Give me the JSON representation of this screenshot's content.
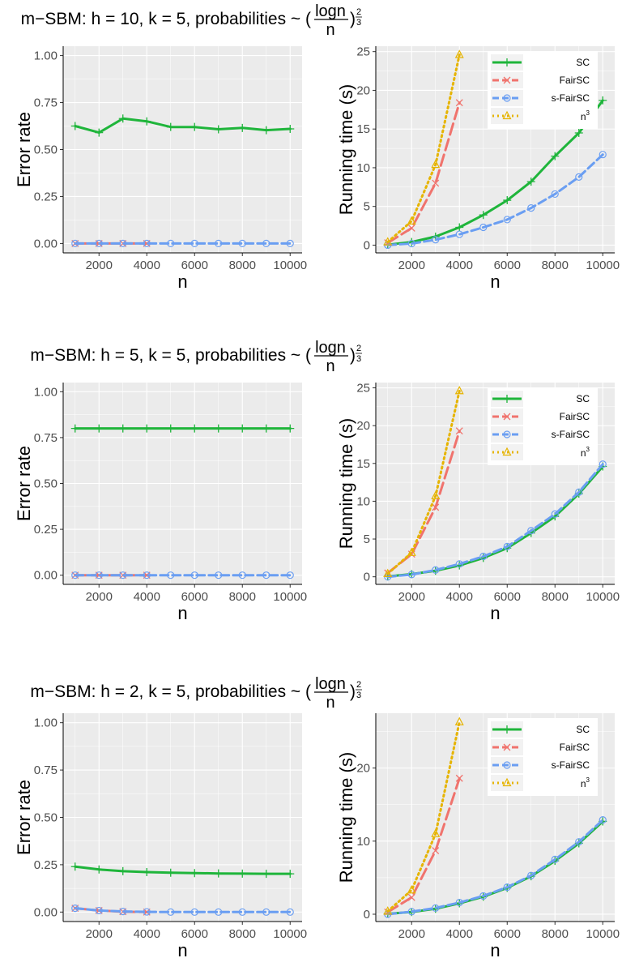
{
  "colors": {
    "SC": "#1fb53b",
    "FairSC": "#f0736d",
    "s-FairSC": "#6a9ef2",
    "n3": "#e6b400",
    "panel_bg": "#ebebeb",
    "grid": "#ffffff"
  },
  "legend": {
    "labels": [
      "SC",
      "FairSC",
      "s-FairSC"
    ],
    "cubic_base": "n",
    "cubic_exp": "3"
  },
  "chart_data": [
    {
      "title": {
        "prefix": "m−SBM: h = 10, k = 5, probabilities ~ (",
        "num": "logn",
        "den": "n",
        "suffix": ")",
        "exp_num": "2",
        "exp_den": "3"
      },
      "panels": [
        {
          "type": "line",
          "xlabel": "n",
          "ylabel": "Error rate",
          "xlim": [
            500,
            10500
          ],
          "ylim": [
            -0.05,
            1.05
          ],
          "x_ticks": [
            2000,
            4000,
            6000,
            8000,
            10000
          ],
          "y_ticks": [
            0,
            0.25,
            0.5,
            0.75,
            1.0
          ],
          "y_tick_labels": [
            "0.00",
            "0.25",
            "0.50",
            "0.75",
            "1.00"
          ],
          "series": [
            {
              "name": "SC",
              "x": [
                1000,
                2000,
                3000,
                4000,
                5000,
                6000,
                7000,
                8000,
                9000,
                10000
              ],
              "y": [
                0.625,
                0.59,
                0.665,
                0.65,
                0.62,
                0.62,
                0.608,
                0.615,
                0.603,
                0.61
              ]
            },
            {
              "name": "FairSC",
              "x": [
                1000,
                2000,
                3000,
                4000
              ],
              "y": [
                0,
                0,
                0,
                0
              ]
            },
            {
              "name": "s-FairSC",
              "x": [
                1000,
                2000,
                3000,
                4000,
                5000,
                6000,
                7000,
                8000,
                9000,
                10000
              ],
              "y": [
                0,
                0,
                0,
                0,
                0,
                0,
                0,
                0,
                0,
                0
              ]
            }
          ]
        },
        {
          "type": "line",
          "xlabel": "n",
          "ylabel": "Running time (s)",
          "xlim": [
            500,
            10500
          ],
          "ylim": [
            -1,
            25.7
          ],
          "x_ticks": [
            2000,
            4000,
            6000,
            8000,
            10000
          ],
          "y_ticks": [
            0,
            5,
            10,
            15,
            20,
            25
          ],
          "y_tick_labels": [
            "0",
            "5",
            "10",
            "15",
            "20",
            "25"
          ],
          "legend": "top-right",
          "series": [
            {
              "name": "SC",
              "x": [
                1000,
                2000,
                3000,
                4000,
                5000,
                6000,
                7000,
                8000,
                9000,
                10000
              ],
              "y": [
                0.05,
                0.4,
                1.1,
                2.3,
                3.9,
                5.8,
                8.2,
                11.5,
                14.5,
                18.7
              ]
            },
            {
              "name": "FairSC",
              "x": [
                1000,
                2000,
                3000,
                4000
              ],
              "y": [
                0.3,
                2.2,
                8.0,
                18.4
              ]
            },
            {
              "name": "s-FairSC",
              "x": [
                1000,
                2000,
                3000,
                4000,
                5000,
                6000,
                7000,
                8000,
                9000,
                10000
              ],
              "y": [
                0,
                0.2,
                0.7,
                1.4,
                2.3,
                3.3,
                4.8,
                6.6,
                8.8,
                11.7
              ]
            },
            {
              "name": "n^3",
              "x": [
                1000,
                2000,
                3000,
                4000
              ],
              "y": [
                0.4,
                3.1,
                10.4,
                24.6
              ]
            }
          ]
        }
      ]
    },
    {
      "title": {
        "prefix": "m−SBM: h = 5, k = 5, probabilities ~ (",
        "num": "logn",
        "den": "n",
        "suffix": ")",
        "exp_num": "2",
        "exp_den": "3"
      },
      "panels": [
        {
          "type": "line",
          "xlabel": "n",
          "ylabel": "Error rate",
          "xlim": [
            500,
            10500
          ],
          "ylim": [
            -0.05,
            1.05
          ],
          "x_ticks": [
            2000,
            4000,
            6000,
            8000,
            10000
          ],
          "y_ticks": [
            0,
            0.25,
            0.5,
            0.75,
            1.0
          ],
          "y_tick_labels": [
            "0.00",
            "0.25",
            "0.50",
            "0.75",
            "1.00"
          ],
          "series": [
            {
              "name": "SC",
              "x": [
                1000,
                2000,
                3000,
                4000,
                5000,
                6000,
                7000,
                8000,
                9000,
                10000
              ],
              "y": [
                0.8,
                0.8,
                0.8,
                0.8,
                0.8,
                0.8,
                0.8,
                0.8,
                0.8,
                0.8
              ]
            },
            {
              "name": "FairSC",
              "x": [
                1000,
                2000,
                3000,
                4000
              ],
              "y": [
                0,
                0,
                0,
                0
              ]
            },
            {
              "name": "s-FairSC",
              "x": [
                1000,
                2000,
                3000,
                4000,
                5000,
                6000,
                7000,
                8000,
                9000,
                10000
              ],
              "y": [
                0,
                0,
                0,
                0,
                0,
                0,
                0,
                0,
                0,
                0
              ]
            }
          ]
        },
        {
          "type": "line",
          "xlabel": "n",
          "ylabel": "Running time (s)",
          "xlim": [
            500,
            10500
          ],
          "ylim": [
            -1,
            25.7
          ],
          "x_ticks": [
            2000,
            4000,
            6000,
            8000,
            10000
          ],
          "y_ticks": [
            0,
            5,
            10,
            15,
            20,
            25
          ],
          "y_tick_labels": [
            "0",
            "5",
            "10",
            "15",
            "20",
            "25"
          ],
          "legend": "top-right",
          "series": [
            {
              "name": "SC",
              "x": [
                1000,
                2000,
                3000,
                4000,
                5000,
                6000,
                7000,
                8000,
                9000,
                10000
              ],
              "y": [
                0.05,
                0.35,
                0.8,
                1.5,
                2.5,
                3.8,
                5.8,
                8.0,
                11.0,
                14.6
              ]
            },
            {
              "name": "FairSC",
              "x": [
                1000,
                2000,
                3000,
                4000
              ],
              "y": [
                0.5,
                3.0,
                9.2,
                19.3
              ]
            },
            {
              "name": "s-FairSC",
              "x": [
                1000,
                2000,
                3000,
                4000,
                5000,
                6000,
                7000,
                8000,
                9000,
                10000
              ],
              "y": [
                0,
                0.3,
                0.9,
                1.7,
                2.7,
                4.0,
                6.1,
                8.3,
                11.2,
                14.9
              ]
            },
            {
              "name": "n^3",
              "x": [
                1000,
                2000,
                3000,
                4000
              ],
              "y": [
                0.4,
                3.2,
                10.7,
                24.6
              ]
            }
          ]
        }
      ]
    },
    {
      "title": {
        "prefix": "m−SBM: h = 2, k = 5, probabilities ~ (",
        "num": "logn",
        "den": "n",
        "suffix": ")",
        "exp_num": "2",
        "exp_den": "3"
      },
      "panels": [
        {
          "type": "line",
          "xlabel": "n",
          "ylabel": "Error rate",
          "xlim": [
            500,
            10500
          ],
          "ylim": [
            -0.05,
            1.05
          ],
          "x_ticks": [
            2000,
            4000,
            6000,
            8000,
            10000
          ],
          "y_ticks": [
            0,
            0.25,
            0.5,
            0.75,
            1.0
          ],
          "y_tick_labels": [
            "0.00",
            "0.25",
            "0.50",
            "0.75",
            "1.00"
          ],
          "series": [
            {
              "name": "SC",
              "x": [
                1000,
                2000,
                3000,
                4000,
                5000,
                6000,
                7000,
                8000,
                9000,
                10000
              ],
              "y": [
                0.24,
                0.225,
                0.216,
                0.211,
                0.208,
                0.206,
                0.204,
                0.203,
                0.202,
                0.202
              ]
            },
            {
              "name": "FairSC",
              "x": [
                1000,
                2000,
                3000,
                4000
              ],
              "y": [
                0.02,
                0.008,
                0.002,
                0.0
              ]
            },
            {
              "name": "s-FairSC",
              "x": [
                1000,
                2000,
                3000,
                4000,
                5000,
                6000,
                7000,
                8000,
                9000,
                10000
              ],
              "y": [
                0.02,
                0.008,
                0.003,
                0.001,
                0,
                0,
                0,
                0,
                0,
                0
              ]
            }
          ]
        },
        {
          "type": "line",
          "xlabel": "n",
          "ylabel": "Running time (s)",
          "xlim": [
            500,
            10500
          ],
          "ylim": [
            -1,
            27.5
          ],
          "x_ticks": [
            2000,
            4000,
            6000,
            8000,
            10000
          ],
          "y_ticks": [
            0,
            10,
            20
          ],
          "y_tick_labels": [
            "0",
            "10",
            "20"
          ],
          "legend": "top-right",
          "series": [
            {
              "name": "SC",
              "x": [
                1000,
                2000,
                3000,
                4000,
                5000,
                6000,
                7000,
                8000,
                9000,
                10000
              ],
              "y": [
                0.05,
                0.3,
                0.75,
                1.5,
                2.4,
                3.6,
                5.2,
                7.3,
                9.7,
                12.7
              ]
            },
            {
              "name": "FairSC",
              "x": [
                1000,
                2000,
                3000,
                4000
              ],
              "y": [
                0.3,
                2.3,
                8.7,
                18.6
              ]
            },
            {
              "name": "s-FairSC",
              "x": [
                1000,
                2000,
                3000,
                4000,
                5000,
                6000,
                7000,
                8000,
                9000,
                10000
              ],
              "y": [
                0,
                0.35,
                0.85,
                1.6,
                2.5,
                3.7,
                5.3,
                7.5,
                9.9,
                12.9
              ]
            },
            {
              "name": "n^3",
              "x": [
                1000,
                2000,
                3000,
                4000
              ],
              "y": [
                0.4,
                3.3,
                11.0,
                26.3
              ]
            }
          ]
        }
      ]
    }
  ]
}
